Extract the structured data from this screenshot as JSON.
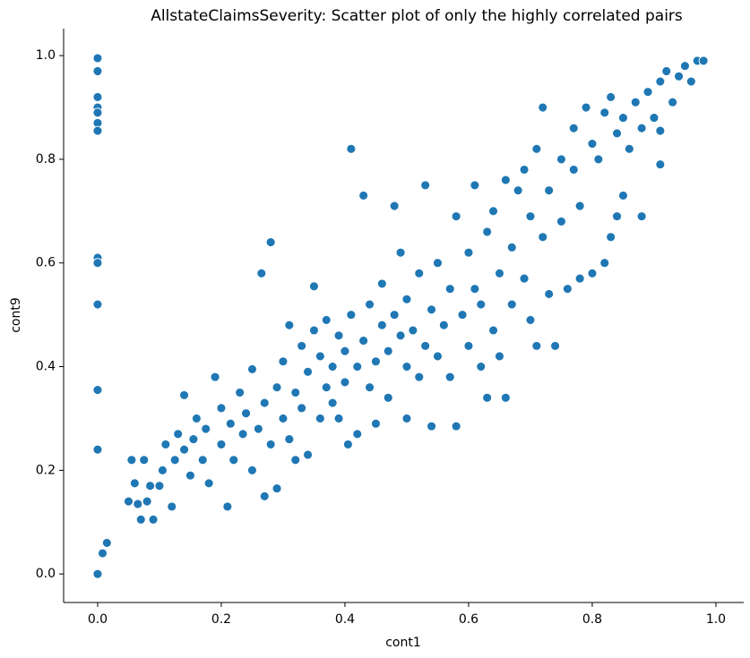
{
  "chart_data": {
    "type": "scatter",
    "title": "AllstateClaimsSeverity: Scatter plot of only the highly correlated pairs",
    "xlabel": "cont1",
    "ylabel": "cont9",
    "xlim": [
      -0.055,
      1.045
    ],
    "ylim": [
      -0.055,
      1.052
    ],
    "xticks": [
      {
        "value": 0,
        "label": "0.0"
      },
      {
        "value": 0.2,
        "label": "0.2"
      },
      {
        "value": 0.4,
        "label": "0.4"
      },
      {
        "value": 0.6,
        "label": "0.6"
      },
      {
        "value": 0.8,
        "label": "0.8"
      },
      {
        "value": 1,
        "label": "1.0"
      }
    ],
    "yticks": [
      {
        "value": 0,
        "label": "0.0"
      },
      {
        "value": 0.2,
        "label": "0.2"
      },
      {
        "value": 0.4,
        "label": "0.4"
      },
      {
        "value": 0.6,
        "label": "0.6"
      },
      {
        "value": 0.8,
        "label": "0.8"
      },
      {
        "value": 1,
        "label": "1.0"
      }
    ],
    "color": "#1f77b4",
    "x": [
      0,
      0,
      0,
      0,
      0,
      0,
      0,
      0,
      0,
      0,
      0,
      0,
      0,
      0.008,
      0.015,
      0.05,
      0.07,
      0.09,
      0.055,
      0.06,
      0.065,
      0.08,
      0.075,
      0.085,
      0.1,
      0.105,
      0.11,
      0.12,
      0.125,
      0.13,
      0.14,
      0.14,
      0.15,
      0.155,
      0.16,
      0.17,
      0.175,
      0.18,
      0.19,
      0.2,
      0.2,
      0.21,
      0.215,
      0.22,
      0.23,
      0.235,
      0.24,
      0.25,
      0.25,
      0.26,
      0.265,
      0.27,
      0.27,
      0.28,
      0.28,
      0.29,
      0.29,
      0.3,
      0.3,
      0.31,
      0.31,
      0.32,
      0.32,
      0.33,
      0.33,
      0.34,
      0.34,
      0.35,
      0.35,
      0.36,
      0.36,
      0.37,
      0.37,
      0.38,
      0.38,
      0.39,
      0.39,
      0.4,
      0.4,
      0.405,
      0.41,
      0.41,
      0.42,
      0.42,
      0.43,
      0.43,
      0.44,
      0.44,
      0.45,
      0.45,
      0.46,
      0.46,
      0.47,
      0.47,
      0.48,
      0.48,
      0.49,
      0.49,
      0.5,
      0.5,
      0.5,
      0.51,
      0.52,
      0.52,
      0.53,
      0.53,
      0.54,
      0.54,
      0.55,
      0.55,
      0.56,
      0.57,
      0.57,
      0.58,
      0.58,
      0.59,
      0.6,
      0.6,
      0.61,
      0.61,
      0.62,
      0.62,
      0.63,
      0.63,
      0.64,
      0.64,
      0.65,
      0.65,
      0.66,
      0.66,
      0.67,
      0.67,
      0.68,
      0.69,
      0.69,
      0.7,
      0.7,
      0.71,
      0.71,
      0.72,
      0.72,
      0.73,
      0.73,
      0.74,
      0.75,
      0.75,
      0.76,
      0.77,
      0.77,
      0.78,
      0.78,
      0.79,
      0.8,
      0.8,
      0.81,
      0.82,
      0.82,
      0.83,
      0.83,
      0.84,
      0.84,
      0.85,
      0.85,
      0.86,
      0.87,
      0.88,
      0.88,
      0.89,
      0.9,
      0.91,
      0.91,
      0.91,
      0.92,
      0.93,
      0.94,
      0.95,
      0.96,
      0.97,
      0.98
    ],
    "values": [
      0.995,
      0.97,
      0.92,
      0.9,
      0.89,
      0.87,
      0.855,
      0.61,
      0.6,
      0.52,
      0.355,
      0.24,
      0,
      0.04,
      0.06,
      0.14,
      0.105,
      0.105,
      0.22,
      0.175,
      0.135,
      0.14,
      0.22,
      0.17,
      0.17,
      0.2,
      0.25,
      0.13,
      0.22,
      0.27,
      0.24,
      0.345,
      0.19,
      0.26,
      0.3,
      0.22,
      0.28,
      0.175,
      0.38,
      0.25,
      0.32,
      0.13,
      0.29,
      0.22,
      0.35,
      0.27,
      0.31,
      0.2,
      0.395,
      0.28,
      0.58,
      0.33,
      0.15,
      0.25,
      0.64,
      0.36,
      0.165,
      0.3,
      0.41,
      0.26,
      0.48,
      0.35,
      0.22,
      0.44,
      0.32,
      0.39,
      0.23,
      0.47,
      0.555,
      0.42,
      0.3,
      0.36,
      0.49,
      0.4,
      0.33,
      0.46,
      0.3,
      0.43,
      0.37,
      0.25,
      0.82,
      0.5,
      0.4,
      0.27,
      0.45,
      0.73,
      0.52,
      0.36,
      0.41,
      0.29,
      0.48,
      0.56,
      0.43,
      0.34,
      0.5,
      0.71,
      0.46,
      0.62,
      0.4,
      0.53,
      0.3,
      0.47,
      0.58,
      0.38,
      0.44,
      0.75,
      0.51,
      0.285,
      0.42,
      0.6,
      0.48,
      0.55,
      0.38,
      0.69,
      0.285,
      0.5,
      0.62,
      0.44,
      0.75,
      0.55,
      0.52,
      0.4,
      0.66,
      0.34,
      0.47,
      0.7,
      0.58,
      0.42,
      0.76,
      0.34,
      0.63,
      0.52,
      0.74,
      0.78,
      0.57,
      0.69,
      0.49,
      0.82,
      0.44,
      0.9,
      0.65,
      0.74,
      0.54,
      0.44,
      0.8,
      0.68,
      0.55,
      0.86,
      0.78,
      0.71,
      0.57,
      0.9,
      0.83,
      0.58,
      0.8,
      0.89,
      0.6,
      0.92,
      0.65,
      0.85,
      0.69,
      0.88,
      0.73,
      0.82,
      0.91,
      0.69,
      0.86,
      0.93,
      0.88,
      0.95,
      0.79,
      0.855,
      0.97,
      0.91,
      0.96,
      0.98,
      0.95,
      0.99,
      0.99
    ]
  }
}
